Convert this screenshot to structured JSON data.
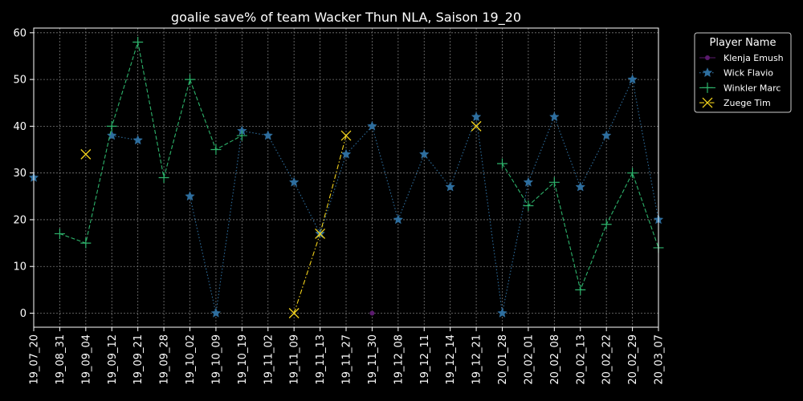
{
  "chart_data": {
    "type": "line",
    "title": "goalie save% of team Wacker Thun NLA, Saison 19_20",
    "xlabel": "",
    "ylabel": "",
    "ylim": [
      -3,
      61
    ],
    "yticks": [
      0,
      10,
      20,
      30,
      40,
      50,
      60
    ],
    "grid": true,
    "legend_title": "Player Name",
    "legend_position": "outside-top-right",
    "categories": [
      "19_07_20",
      "19_08_31",
      "19_09_04",
      "19_09_12",
      "19_09_21",
      "19_09_28",
      "19_10_02",
      "19_10_09",
      "19_10_19",
      "19_11_02",
      "19_11_09",
      "19_11_13",
      "19_11_27",
      "19_11_30",
      "19_12_08",
      "19_12_11",
      "19_12_14",
      "19_12_21",
      "20_01_28",
      "20_02_01",
      "20_02_08",
      "20_02_13",
      "20_02_22",
      "20_02_29",
      "20_03_07"
    ],
    "series": [
      {
        "name": "Klenja Emush",
        "color": "#5b1a6e",
        "marker": "dot",
        "line": "solid",
        "values": [
          null,
          null,
          null,
          null,
          null,
          null,
          null,
          null,
          null,
          null,
          null,
          null,
          null,
          0,
          null,
          null,
          null,
          null,
          null,
          null,
          null,
          null,
          null,
          null,
          null
        ]
      },
      {
        "name": "Wick Flavio",
        "color": "#2e6e9e",
        "marker": "star",
        "line": "dotted",
        "values": [
          29,
          null,
          null,
          38,
          37,
          null,
          25,
          0,
          39,
          38,
          28,
          17,
          34,
          40,
          20,
          34,
          27,
          42,
          0,
          28,
          42,
          27,
          38,
          50,
          20
        ]
      },
      {
        "name": "Winkler Marc",
        "color": "#2db36b",
        "marker": "plus",
        "line": "dashed",
        "values": [
          null,
          17,
          15,
          40,
          58,
          29,
          50,
          35,
          38,
          null,
          null,
          null,
          null,
          null,
          null,
          null,
          null,
          null,
          32,
          23,
          28,
          5,
          19,
          30,
          14
        ]
      },
      {
        "name": "Zuege Tim",
        "color": "#f2d21b",
        "marker": "x",
        "line": "dashdot",
        "values": [
          null,
          null,
          34,
          null,
          null,
          null,
          null,
          null,
          null,
          null,
          0,
          17,
          38,
          null,
          null,
          null,
          null,
          40,
          null,
          null,
          null,
          null,
          null,
          null,
          null
        ]
      }
    ]
  }
}
